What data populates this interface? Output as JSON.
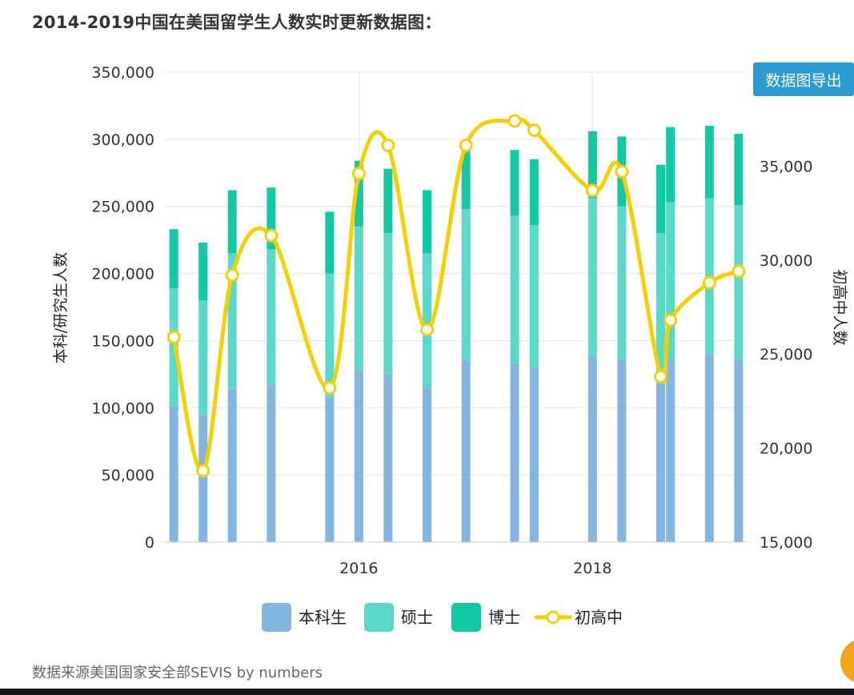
{
  "title": "2014-2019中国在美国留学生人数实时更新数据图：",
  "export_button": "数据图导出",
  "source": "数据来源美国国家安全部SEVIS by numbers",
  "chart_data": {
    "type": "bar",
    "subtype": "stacked bar + line, dual y-axis",
    "x_ticks": [
      "2016",
      "2018"
    ],
    "xlabel": "",
    "left_axis": {
      "label": "本科/研究生人数",
      "ylim": [
        0,
        350000
      ],
      "ticks": [
        0,
        50000,
        100000,
        150000,
        200000,
        250000,
        300000,
        350000
      ],
      "tick_labels": [
        "0",
        "50,000",
        "100,000",
        "150,000",
        "200,000",
        "250,000",
        "300,000",
        "350,000"
      ]
    },
    "right_axis": {
      "label": "初高中人数",
      "ylim": [
        15000,
        40000
      ],
      "ticks": [
        15000,
        20000,
        25000,
        30000,
        35000
      ],
      "tick_labels": [
        "15,000",
        "20,000",
        "25,000",
        "30,000",
        "35,000"
      ]
    },
    "grid": true,
    "legend_position": "bottom-center",
    "colors": {
      "本科生": "#82b6e0",
      "硕士": "#5ad9c8",
      "博士": "#13c9a3",
      "初高中": "#f5d000"
    },
    "series": [
      {
        "name": "本科生",
        "axis": "left",
        "kind": "bar"
      },
      {
        "name": "硕士",
        "axis": "left",
        "kind": "bar"
      },
      {
        "name": "博士",
        "axis": "left",
        "kind": "bar"
      },
      {
        "name": "初高中",
        "axis": "right",
        "kind": "line"
      }
    ],
    "x_domain": [
      "2014-05",
      "2019-05"
    ],
    "bars": [
      {
        "date": "2014-06",
        "undergrad": 101000,
        "master": 88000,
        "phd": 44000
      },
      {
        "date": "2014-09",
        "undergrad": 95000,
        "master": 85000,
        "phd": 43000
      },
      {
        "date": "2014-12",
        "undergrad": 114000,
        "master": 101000,
        "phd": 47000
      },
      {
        "date": "2015-04",
        "undergrad": 117000,
        "master": 101000,
        "phd": 46000
      },
      {
        "date": "2015-10",
        "undergrad": 108000,
        "master": 92000,
        "phd": 46000
      },
      {
        "date": "2016-01",
        "undergrad": 128000,
        "master": 107000,
        "phd": 49000
      },
      {
        "date": "2016-04",
        "undergrad": 125000,
        "master": 105000,
        "phd": 48000
      },
      {
        "date": "2016-08",
        "undergrad": 115000,
        "master": 100000,
        "phd": 47000
      },
      {
        "date": "2016-12",
        "undergrad": 135000,
        "master": 113000,
        "phd": 46000
      },
      {
        "date": "2017-05",
        "undergrad": 133000,
        "master": 110000,
        "phd": 49000
      },
      {
        "date": "2017-07",
        "undergrad": 130000,
        "master": 106000,
        "phd": 49000
      },
      {
        "date": "2018-01",
        "undergrad": 139000,
        "master": 117000,
        "phd": 50000
      },
      {
        "date": "2018-04",
        "undergrad": 136000,
        "master": 114000,
        "phd": 52000
      },
      {
        "date": "2018-08",
        "undergrad": 126000,
        "master": 104000,
        "phd": 51000
      },
      {
        "date": "2018-09",
        "undergrad": 136000,
        "master": 117000,
        "phd": 56000
      },
      {
        "date": "2019-01",
        "undergrad": 140000,
        "master": 116000,
        "phd": 54000
      },
      {
        "date": "2019-04",
        "undergrad": 136000,
        "master": 115000,
        "phd": 53000
      }
    ],
    "line": [
      {
        "date": "2014-06",
        "value": 25900
      },
      {
        "date": "2014-09",
        "value": 18800
      },
      {
        "date": "2014-12",
        "value": 29200
      },
      {
        "date": "2015-04",
        "value": 31300
      },
      {
        "date": "2015-10",
        "value": 23200
      },
      {
        "date": "2016-01",
        "value": 34600
      },
      {
        "date": "2016-04",
        "value": 36100
      },
      {
        "date": "2016-08",
        "value": 26300
      },
      {
        "date": "2016-12",
        "value": 36100
      },
      {
        "date": "2017-05",
        "value": 37400
      },
      {
        "date": "2017-07",
        "value": 36900
      },
      {
        "date": "2018-01",
        "value": 33700
      },
      {
        "date": "2018-04",
        "value": 34700
      },
      {
        "date": "2018-08",
        "value": 23800
      },
      {
        "date": "2018-09",
        "value": 26800
      },
      {
        "date": "2019-01",
        "value": 28800
      },
      {
        "date": "2019-04",
        "value": 29400
      }
    ]
  }
}
